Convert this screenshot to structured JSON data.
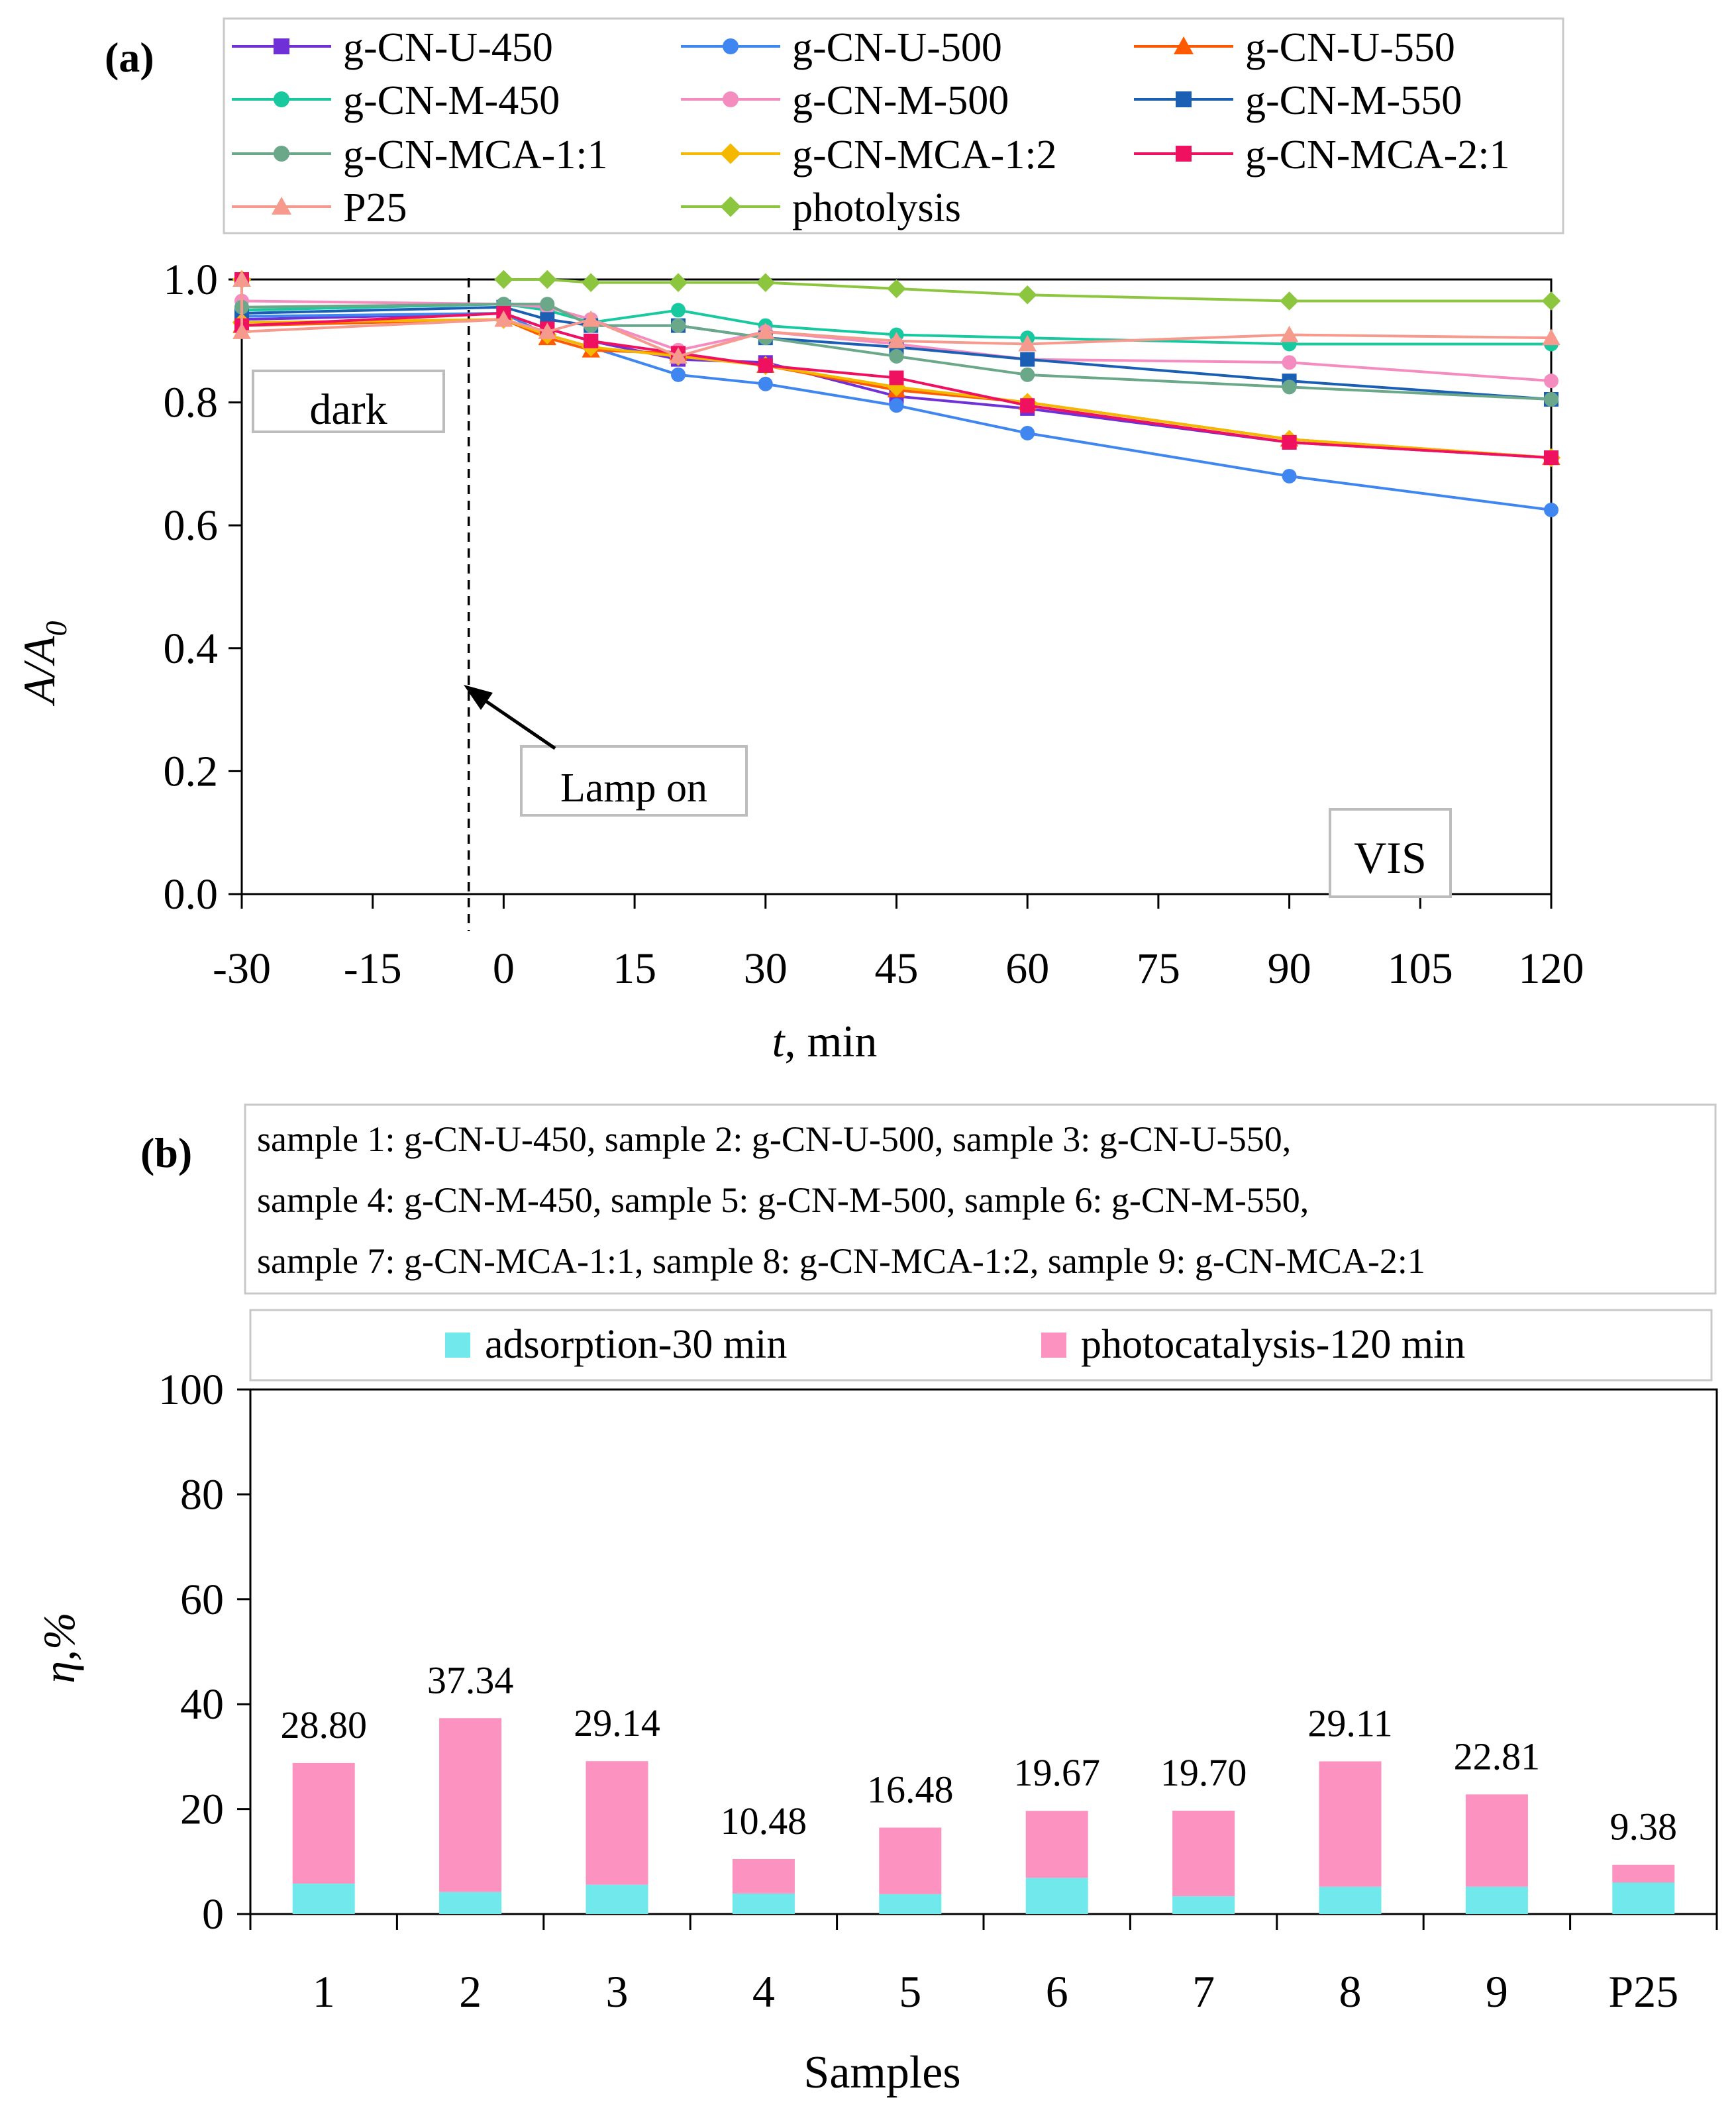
{
  "chart_data": [
    {
      "type": "line",
      "panel_label": "(a)",
      "xlabel_var": "t",
      "xlabel_unit": ", min",
      "ylabel_var": "A/A",
      "ylabel_sub": "0",
      "xlim": [
        -30,
        120
      ],
      "ylim": [
        0,
        1.0
      ],
      "x_ticks": [
        -30,
        -15,
        0,
        15,
        30,
        45,
        60,
        75,
        90,
        105,
        120
      ],
      "x_tick_labels": [
        "-30",
        "-15",
        "0",
        "15",
        "30",
        "45",
        "60",
        "75",
        "90",
        "105",
        "120"
      ],
      "y_ticks": [
        0,
        0.2,
        0.4,
        0.6,
        0.8,
        1.0
      ],
      "y_tick_labels": [
        "0.0",
        "0.2",
        "0.4",
        "0.6",
        "0.8",
        "1.0"
      ],
      "annotations": {
        "dark": "dark",
        "lamp_on": "Lamp on",
        "vis": "VIS"
      },
      "lamp_on_x": -4,
      "series": [
        {
          "name": "g-CN-U-450",
          "color": "#7030d8",
          "marker": "square",
          "x": [
            -30,
            -30,
            0,
            5,
            10,
            20,
            30,
            45,
            60,
            90,
            120
          ],
          "y": [
            1.0,
            0.935,
            0.945,
            0.92,
            0.9,
            0.87,
            0.865,
            0.81,
            0.79,
            0.735,
            0.71
          ]
        },
        {
          "name": "g-CN-U-500",
          "color": "#3f86f0",
          "marker": "circle",
          "x": [
            -30,
            -30,
            0,
            5,
            10,
            20,
            30,
            45,
            60,
            90,
            120
          ],
          "y": [
            1.0,
            0.94,
            0.945,
            0.91,
            0.89,
            0.845,
            0.83,
            0.795,
            0.75,
            0.68,
            0.625
          ]
        },
        {
          "name": "g-CN-U-550",
          "color": "#ff5a00",
          "marker": "triangle",
          "x": [
            -30,
            -30,
            0,
            5,
            10,
            20,
            30,
            45,
            60,
            90,
            120
          ],
          "y": [
            1.0,
            0.925,
            0.935,
            0.905,
            0.885,
            0.88,
            0.86,
            0.82,
            0.8,
            0.74,
            0.71
          ]
        },
        {
          "name": "g-CN-M-450",
          "color": "#18c9a0",
          "marker": "circle",
          "x": [
            -30,
            -30,
            0,
            5,
            10,
            20,
            30,
            45,
            60,
            90,
            120
          ],
          "y": [
            1.0,
            0.95,
            0.96,
            0.95,
            0.93,
            0.95,
            0.925,
            0.91,
            0.905,
            0.895,
            0.895
          ]
        },
        {
          "name": "g-CN-M-500",
          "color": "#f58cc0",
          "marker": "circle",
          "x": [
            -30,
            -30,
            0,
            5,
            10,
            20,
            30,
            45,
            60,
            90,
            120
          ],
          "y": [
            1.0,
            0.965,
            0.96,
            0.955,
            0.935,
            0.885,
            0.915,
            0.895,
            0.87,
            0.865,
            0.835
          ]
        },
        {
          "name": "g-CN-M-550",
          "color": "#1a5fb4",
          "marker": "square",
          "x": [
            -30,
            -30,
            0,
            5,
            10,
            20,
            30,
            45,
            60,
            90,
            120
          ],
          "y": [
            1.0,
            0.945,
            0.955,
            0.935,
            0.925,
            0.925,
            0.905,
            0.89,
            0.87,
            0.835,
            0.805
          ]
        },
        {
          "name": "g-CN-MCA-1:1",
          "color": "#6aa889",
          "marker": "circle",
          "x": [
            -30,
            -30,
            0,
            5,
            10,
            20,
            30,
            45,
            60,
            90,
            120
          ],
          "y": [
            1.0,
            0.955,
            0.96,
            0.96,
            0.925,
            0.925,
            0.905,
            0.875,
            0.845,
            0.825,
            0.805
          ]
        },
        {
          "name": "g-CN-MCA-1:2",
          "color": "#f5b800",
          "marker": "diamond",
          "x": [
            -30,
            -30,
            0,
            5,
            10,
            20,
            30,
            45,
            60,
            90,
            120
          ],
          "y": [
            1.0,
            0.93,
            0.935,
            0.91,
            0.89,
            0.875,
            0.86,
            0.825,
            0.8,
            0.74,
            0.71
          ]
        },
        {
          "name": "g-CN-MCA-2:1",
          "color": "#f01060",
          "marker": "square",
          "x": [
            -30,
            -30,
            0,
            5,
            10,
            20,
            30,
            45,
            60,
            90,
            120
          ],
          "y": [
            1.0,
            0.925,
            0.945,
            0.92,
            0.9,
            0.88,
            0.86,
            0.84,
            0.795,
            0.735,
            0.71
          ]
        },
        {
          "name": "P25",
          "color": "#f59a8c",
          "marker": "triangle",
          "x": [
            -30,
            -30,
            0,
            5,
            10,
            20,
            30,
            45,
            60,
            90,
            120
          ],
          "y": [
            1.0,
            0.915,
            0.935,
            0.915,
            0.935,
            0.875,
            0.915,
            0.9,
            0.895,
            0.91,
            0.905
          ]
        },
        {
          "name": "photolysis",
          "color": "#8cc63f",
          "marker": "diamond",
          "x": [
            0,
            5,
            10,
            20,
            30,
            45,
            60,
            90,
            120
          ],
          "y": [
            1.0,
            1.0,
            0.995,
            0.995,
            0.995,
            0.985,
            0.975,
            0.965,
            0.965
          ]
        }
      ]
    },
    {
      "type": "bar",
      "stacked": true,
      "panel_label": "(b)",
      "xlabel": "Samples",
      "ylabel": "η,%",
      "ylim": [
        0,
        100
      ],
      "y_ticks": [
        0,
        20,
        40,
        60,
        80,
        100
      ],
      "y_tick_labels": [
        "0",
        "20",
        "40",
        "60",
        "80",
        "100"
      ],
      "info_lines": [
        "sample 1: g-CN-U-450, sample 2: g-CN-U-500, sample 3: g-CN-U-550,",
        "sample 4: g-CN-M-450, sample 5: g-CN-M-500, sample 6: g-CN-M-550,",
        "sample 7: g-CN-MCA-1:1, sample 8: g-CN-MCA-1:2, sample 9: g-CN-MCA-2:1"
      ],
      "categories": [
        "1",
        "2",
        "3",
        "4",
        "5",
        "6",
        "7",
        "8",
        "9",
        "P25"
      ],
      "series": [
        {
          "name": "adsorption-30 min",
          "color": "#70e8ec",
          "values": [
            5.8,
            4.2,
            5.6,
            3.9,
            3.8,
            6.9,
            3.4,
            5.2,
            5.2,
            6.0
          ]
        },
        {
          "name": "photocatalysis-120 min",
          "color": "#fb92bf",
          "values": [
            23.0,
            33.14,
            23.54,
            6.58,
            12.68,
            12.77,
            16.3,
            23.91,
            17.61,
            3.38
          ]
        }
      ],
      "totals": [
        28.8,
        37.34,
        29.14,
        10.48,
        16.48,
        19.67,
        19.7,
        29.11,
        22.81,
        9.38
      ],
      "total_labels": [
        "28.80",
        "37.34",
        "29.14",
        "10.48",
        "16.48",
        "19.67",
        "19.70",
        "29.11",
        "22.81",
        "9.38"
      ]
    }
  ]
}
